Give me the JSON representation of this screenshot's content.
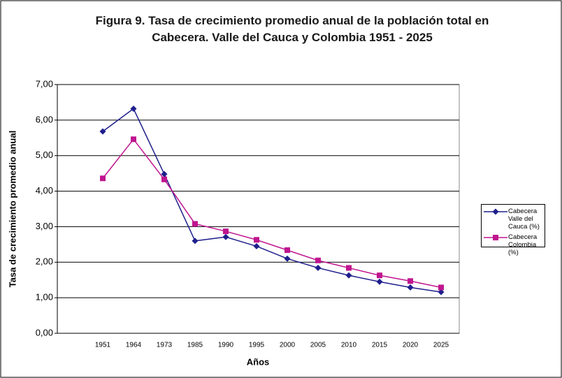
{
  "chart_data": {
    "type": "line",
    "title": "Figura 9. Tasa de crecimiento promedio anual de la población total en Cabecera. Valle del Cauca y Colombia 1951 - 2025",
    "x_label": "Años",
    "y_label": "Tasa de crecimiento promedio anual",
    "categories": [
      null,
      "1951",
      "1964",
      "1973",
      "1985",
      "1990",
      "1995",
      "2000",
      "2005",
      "2010",
      "2015",
      "2020",
      "2025"
    ],
    "series": [
      {
        "name": "Cabecera Valle del Cauca (%)",
        "color": "#1f1f8c",
        "marker": "diamond",
        "values": [
          null,
          5.68,
          6.32,
          4.48,
          2.6,
          2.71,
          2.45,
          2.1,
          1.84,
          1.63,
          1.45,
          1.29,
          1.16
        ]
      },
      {
        "name": "Cabecera Colombia (%)",
        "color": "#c0158f",
        "marker": "square",
        "values": [
          null,
          4.36,
          5.46,
          4.33,
          3.08,
          2.87,
          2.63,
          2.34,
          2.05,
          1.84,
          1.63,
          1.47,
          1.29
        ]
      }
    ],
    "ylim": [
      0,
      7
    ],
    "yticks": [
      {
        "value": 0,
        "label": "0,00"
      },
      {
        "value": 1,
        "label": "1,00"
      },
      {
        "value": 2,
        "label": "2,00"
      },
      {
        "value": 3,
        "label": "3,00"
      },
      {
        "value": 4,
        "label": "4,00"
      },
      {
        "value": 5,
        "label": "5,00"
      },
      {
        "value": 6,
        "label": "6,00"
      },
      {
        "value": 7,
        "label": "7,00"
      }
    ],
    "grid": true,
    "legend": "right"
  }
}
